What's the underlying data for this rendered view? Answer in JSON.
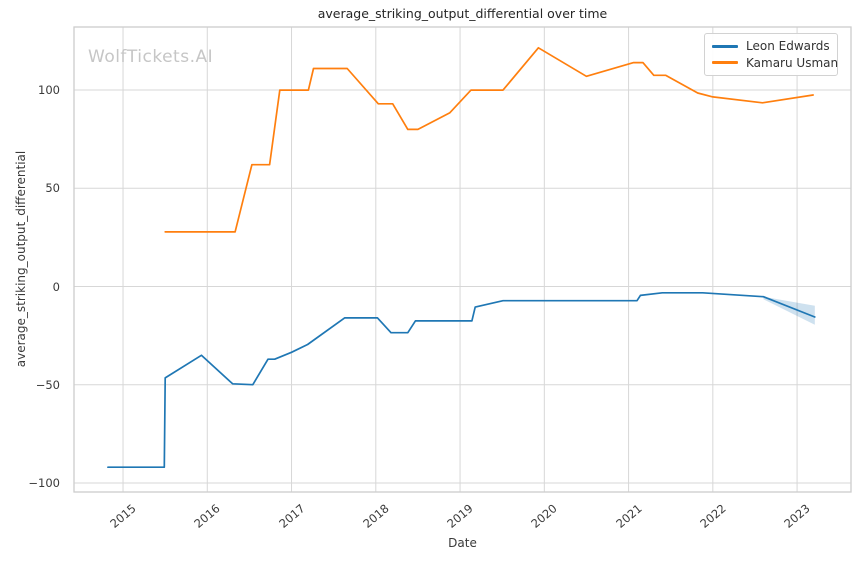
{
  "title": "average_striking_output_differential over time",
  "watermark": "WolfTickets.AI",
  "chart_data": {
    "type": "line",
    "title": "average_striking_output_differential over time",
    "xlabel": "Date",
    "ylabel": "average_striking_output_differential",
    "grid": true,
    "legend_position": "upper right",
    "x_ticks": [
      2015,
      2016,
      2017,
      2018,
      2019,
      2020,
      2021,
      2022,
      2023
    ],
    "y_ticks": [
      -100,
      -50,
      0,
      50,
      100
    ],
    "x_range": [
      2014.418,
      2023.64
    ],
    "y_range": [
      -104.6,
      132.1
    ],
    "series": [
      {
        "name": "Leon Edwards",
        "color": "#1f77b4",
        "points": [
          [
            2014.82,
            -92
          ],
          [
            2015.49,
            -92
          ],
          [
            2015.5,
            -46.5
          ],
          [
            2015.93,
            -35
          ],
          [
            2016.3,
            -49.5
          ],
          [
            2016.54,
            -50
          ],
          [
            2016.72,
            -37
          ],
          [
            2016.8,
            -37
          ],
          [
            2017.0,
            -33.5
          ],
          [
            2017.19,
            -29.5
          ],
          [
            2017.63,
            -16
          ],
          [
            2018.02,
            -16
          ],
          [
            2018.18,
            -23.5
          ],
          [
            2018.38,
            -23.5
          ],
          [
            2018.47,
            -17.5
          ],
          [
            2019.14,
            -17.5
          ],
          [
            2019.18,
            -10.5
          ],
          [
            2019.51,
            -7.2
          ],
          [
            2021.1,
            -7.2
          ],
          [
            2021.14,
            -4.5
          ],
          [
            2021.4,
            -3.2
          ],
          [
            2021.88,
            -3.2
          ],
          [
            2022.6,
            -5.2
          ],
          [
            2023.21,
            -15.5
          ]
        ]
      },
      {
        "name": "Kamaru Usman",
        "color": "#ff7f0e",
        "points": [
          [
            2015.5,
            27.8
          ],
          [
            2016.33,
            27.8
          ],
          [
            2016.53,
            62
          ],
          [
            2016.74,
            62
          ],
          [
            2016.86,
            100
          ],
          [
            2017.2,
            100
          ],
          [
            2017.26,
            111
          ],
          [
            2017.66,
            111
          ],
          [
            2018.03,
            93
          ],
          [
            2018.2,
            93
          ],
          [
            2018.38,
            80
          ],
          [
            2018.5,
            80
          ],
          [
            2018.88,
            88.5
          ],
          [
            2019.13,
            100
          ],
          [
            2019.51,
            100
          ],
          [
            2019.93,
            121.5
          ],
          [
            2020.5,
            107
          ],
          [
            2021.06,
            114
          ],
          [
            2021.17,
            114
          ],
          [
            2021.3,
            107.5
          ],
          [
            2021.44,
            107.5
          ],
          [
            2021.82,
            98.5
          ],
          [
            2022.0,
            96.5
          ],
          [
            2022.59,
            93.5
          ],
          [
            2023.19,
            97.5
          ]
        ]
      }
    ],
    "confidence_band": {
      "series": "Leon Edwards",
      "color": "#1f77b4",
      "opacity": 0.22,
      "upper": [
        [
          2022.6,
          -5.2
        ],
        [
          2023.21,
          -9.8
        ]
      ],
      "lower": [
        [
          2022.6,
          -6.5
        ],
        [
          2023.21,
          -19.5
        ]
      ]
    }
  },
  "colors": {
    "blue": "#1f77b4",
    "orange": "#ff7f0e",
    "grid": "#d7d7d7",
    "spine": "#cdcdcd",
    "watermark": "#c6c6c6",
    "background": "#ffffff"
  }
}
